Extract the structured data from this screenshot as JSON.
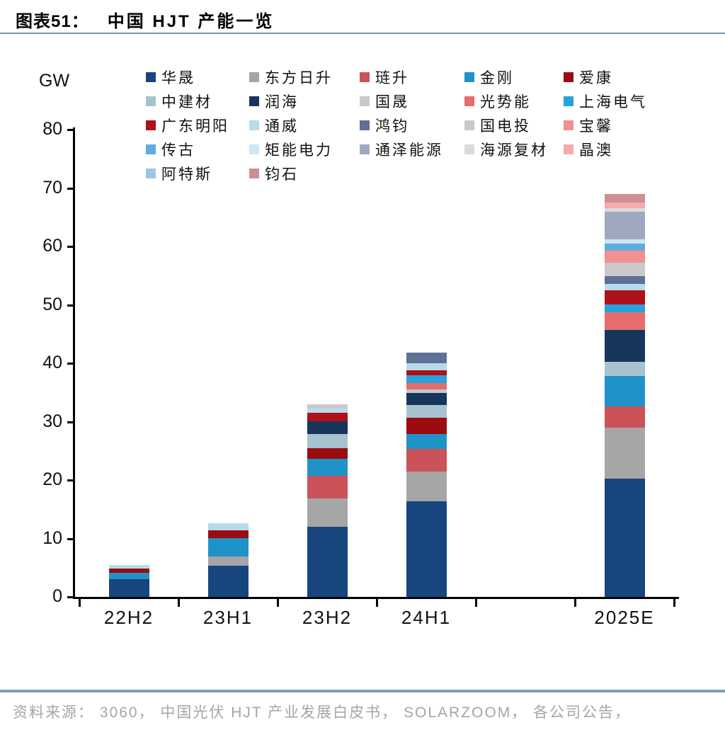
{
  "header": {
    "figure_label": "图表51：",
    "title_text": "中国 HJT 产能一览"
  },
  "axis": {
    "unit_label": "GW"
  },
  "footer": {
    "source_text": "资料来源： 3060， 中国光伏 HJT 产业发展白皮书， SOLARZOOM， 各公司公告，"
  },
  "colors": {
    "divider": "#7E9EBC",
    "axis": "#000000",
    "footer_text": "#A2A6AA"
  },
  "chart_data": {
    "type": "bar",
    "stacked": true,
    "title": "中国 HJT 产能一览",
    "unit": "GW",
    "ylabel": "GW",
    "xlabel": "",
    "ylim": [
      0,
      80
    ],
    "yticks": [
      0,
      10,
      20,
      30,
      40,
      50,
      60,
      70,
      80
    ],
    "grid": false,
    "legend_position": "top",
    "categories": [
      "22H2",
      "23H1",
      "23H2",
      "24H1",
      "2025E"
    ],
    "category_slots": [
      0,
      1,
      2,
      3,
      5
    ],
    "n_slots": 6,
    "series": [
      {
        "name": "华晟",
        "color": "#17457E",
        "values": [
          3.0,
          5.3,
          12.0,
          16.4,
          20.2
        ]
      },
      {
        "name": "东方日升",
        "color": "#A6A6A6",
        "values": [
          0,
          1.6,
          4.8,
          5.1,
          8.8
        ]
      },
      {
        "name": "琏升",
        "color": "#CB5258",
        "values": [
          0,
          0,
          3.9,
          3.8,
          3.6
        ]
      },
      {
        "name": "金刚",
        "color": "#1F93C8",
        "values": [
          1.1,
          3.2,
          2.9,
          2.6,
          5.2
        ]
      },
      {
        "name": "爱康",
        "color": "#9B0B10",
        "values": [
          0.8,
          1.3,
          1.9,
          2.8,
          0
        ]
      },
      {
        "name": "中建材",
        "color": "#A8C2CF",
        "values": [
          0,
          0,
          2.4,
          2.2,
          2.4
        ]
      },
      {
        "name": "润海",
        "color": "#16365C",
        "values": [
          0,
          0,
          2.1,
          2.0,
          5.5
        ]
      },
      {
        "name": "国晟",
        "color": "#C4C9CE",
        "values": [
          0,
          0,
          0,
          0.6,
          0
        ]
      },
      {
        "name": "光势能",
        "color": "#E66C6E",
        "values": [
          0,
          0,
          0,
          1.1,
          3.0
        ]
      },
      {
        "name": "上海电气",
        "color": "#27A3DC",
        "values": [
          0,
          0,
          0,
          1.3,
          1.4
        ]
      },
      {
        "name": "广东明阳",
        "color": "#AE1117",
        "values": [
          0,
          0,
          1.5,
          0.9,
          2.4
        ]
      },
      {
        "name": "通威",
        "color": "#B7DBEB",
        "values": [
          0.6,
          1.2,
          0.7,
          1.2,
          1.1
        ]
      },
      {
        "name": "鸿钧",
        "color": "#5E7094",
        "values": [
          0,
          0,
          0,
          1.8,
          1.3
        ]
      },
      {
        "name": "国电投",
        "color": "#C9C9C9",
        "values": [
          0,
          0,
          0.8,
          0,
          2.3
        ]
      },
      {
        "name": "宝馨",
        "color": "#F18F91",
        "values": [
          0,
          0,
          0,
          0,
          2.1
        ]
      },
      {
        "name": "传古",
        "color": "#61ABE0",
        "values": [
          0,
          0,
          0,
          0,
          1.2
        ]
      },
      {
        "name": "矩能电力",
        "color": "#CCE8F6",
        "values": [
          0,
          0,
          0,
          0,
          0.7
        ]
      },
      {
        "name": "通泽能源",
        "color": "#9FA8BF",
        "values": [
          0,
          0,
          0,
          0,
          4.7
        ]
      },
      {
        "name": "海源复材",
        "color": "#DBDBDB",
        "values": [
          0,
          0,
          0,
          0,
          0.6
        ]
      },
      {
        "name": "晶澳",
        "color": "#F6ABAC",
        "values": [
          0,
          0,
          0,
          0,
          1.0
        ]
      },
      {
        "name": "阿特斯",
        "color": "#9CC5E7",
        "values": [
          0,
          0,
          0,
          0,
          0
        ]
      },
      {
        "name": "钧石",
        "color": "#CD8E94",
        "values": [
          0,
          0,
          0,
          0,
          1.5
        ]
      }
    ]
  }
}
